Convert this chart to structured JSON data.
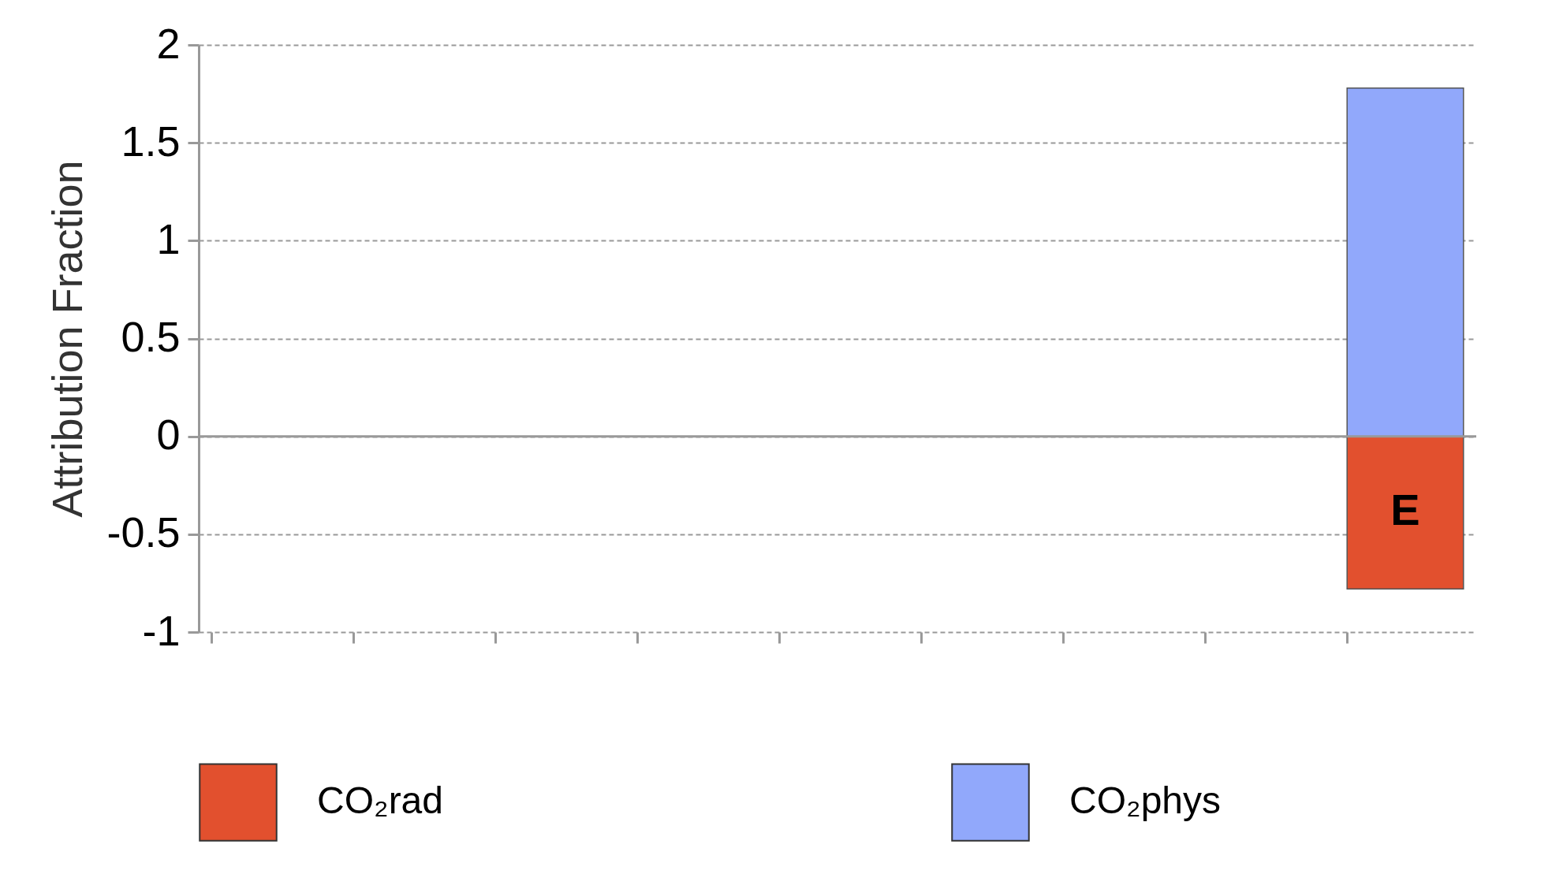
{
  "chart_data": {
    "type": "bar",
    "ylabel": "Attribution Fraction",
    "categories": [
      null,
      null,
      null,
      null,
      null,
      null,
      null,
      null,
      null
    ],
    "series": [
      {
        "name": "CO₂rad",
        "color": "#e2502e",
        "values": [
          null,
          null,
          null,
          null,
          null,
          null,
          null,
          null,
          -0.78
        ]
      },
      {
        "name": "CO₂phys",
        "color": "#91a8fb",
        "values": [
          null,
          null,
          null,
          null,
          null,
          null,
          null,
          null,
          1.78
        ]
      }
    ],
    "stacked": true,
    "ylim": [
      -1,
      2
    ],
    "yticks": [
      -1,
      -0.5,
      0,
      0.5,
      1,
      1.5,
      2
    ],
    "grid": "y",
    "legend": "bottom",
    "annotations": [
      "E"
    ]
  }
}
